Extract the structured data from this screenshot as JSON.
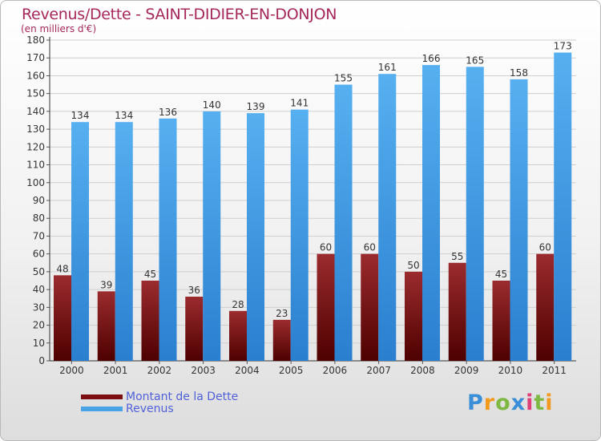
{
  "header": {
    "title": "Revenus/Dette - SAINT-DIDIER-EN-DONJON",
    "subtitle": "(en milliers d'€)"
  },
  "chart_data": {
    "type": "bar",
    "categories": [
      "2000",
      "2001",
      "2002",
      "2003",
      "2004",
      "2005",
      "2006",
      "2007",
      "2008",
      "2009",
      "2010",
      "2011"
    ],
    "series": [
      {
        "name": "Montant de la Dette",
        "color": "#7a0e10",
        "values": [
          48,
          39,
          45,
          36,
          28,
          23,
          60,
          60,
          50,
          55,
          45,
          60
        ]
      },
      {
        "name": "Revenus",
        "color": "#4aa3e6",
        "values": [
          134,
          134,
          136,
          140,
          139,
          141,
          155,
          161,
          166,
          165,
          158,
          173
        ]
      }
    ],
    "ylim": [
      0,
      180
    ],
    "yticks": [
      0,
      10,
      20,
      30,
      40,
      50,
      60,
      70,
      80,
      90,
      100,
      110,
      120,
      130,
      140,
      150,
      160,
      170,
      180
    ],
    "grid": true,
    "legend_position": "bottom-left"
  },
  "logo": {
    "letters": [
      "P",
      "r",
      "o",
      "x",
      "i",
      "t",
      "i"
    ],
    "colors": [
      "#3b8fd8",
      "#f39a1e",
      "#7fb842",
      "#3b8fd8",
      "#e0407a",
      "#7fb842",
      "#f39a1e"
    ]
  }
}
